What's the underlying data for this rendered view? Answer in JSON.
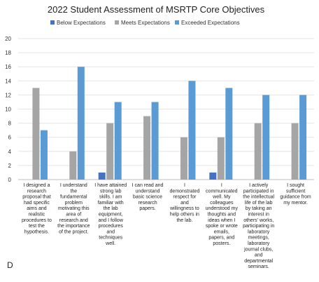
{
  "chart_data": {
    "type": "bar",
    "title": "2022 Student Assessment of MSRTP Core Objectives",
    "panel_label": "D",
    "ylim": [
      0,
      20
    ],
    "yticks": [
      0,
      2,
      4,
      6,
      8,
      10,
      12,
      14,
      16,
      18,
      20
    ],
    "grid": true,
    "legend_position": "top",
    "categories": [
      [
        "I designed a",
        "research",
        "proposal that",
        "had specific",
        "aims and",
        "realistic",
        "procedures to",
        "test the",
        "hypothesis."
      ],
      [
        "I understand",
        "the",
        "fundamental",
        "problem",
        "motivating this",
        "area of",
        "research and",
        "the importance",
        "of the project."
      ],
      [
        "I have attained",
        "strong lab",
        "skills. I am",
        "familiar with",
        "the lab",
        "equipment,",
        "and I follow",
        "procedures",
        "and",
        "techniques",
        "well."
      ],
      [
        "I can read and",
        "understand",
        "basic science",
        "research",
        "papers."
      ],
      [
        "I",
        "demonstrated",
        "respect for",
        "and",
        "willingness to",
        "help others in",
        "the lab."
      ],
      [
        "I",
        "communicated",
        "well. My",
        "colleagues",
        "understood my",
        "thoughts and",
        "ideas when I",
        "spoke or wrote",
        "emails,",
        "papers, and",
        "posters."
      ],
      [
        "I actively",
        "participated in",
        "the intellectual",
        "life of the lab",
        "by taking an",
        "interest in",
        "others' works,",
        "participating in",
        "laboratory",
        "meetings,",
        "laboratory",
        "journal clubs,",
        "and",
        "departmental",
        "seminars."
      ],
      [
        "I sought",
        "sufficient",
        "guidance from",
        "my mentor."
      ]
    ],
    "series": [
      {
        "name": "Below Expectations",
        "color": "#4472C4",
        "values": [
          0,
          0,
          1,
          0,
          0,
          1,
          0,
          0
        ]
      },
      {
        "name": "Meets Expectations",
        "color": "#A5A5A5",
        "values": [
          13,
          4,
          8,
          9,
          6,
          6,
          8,
          8
        ]
      },
      {
        "name": "Exceeded Expectations",
        "color": "#5B9BD5",
        "values": [
          7,
          16,
          11,
          11,
          14,
          13,
          12,
          12
        ]
      }
    ]
  }
}
